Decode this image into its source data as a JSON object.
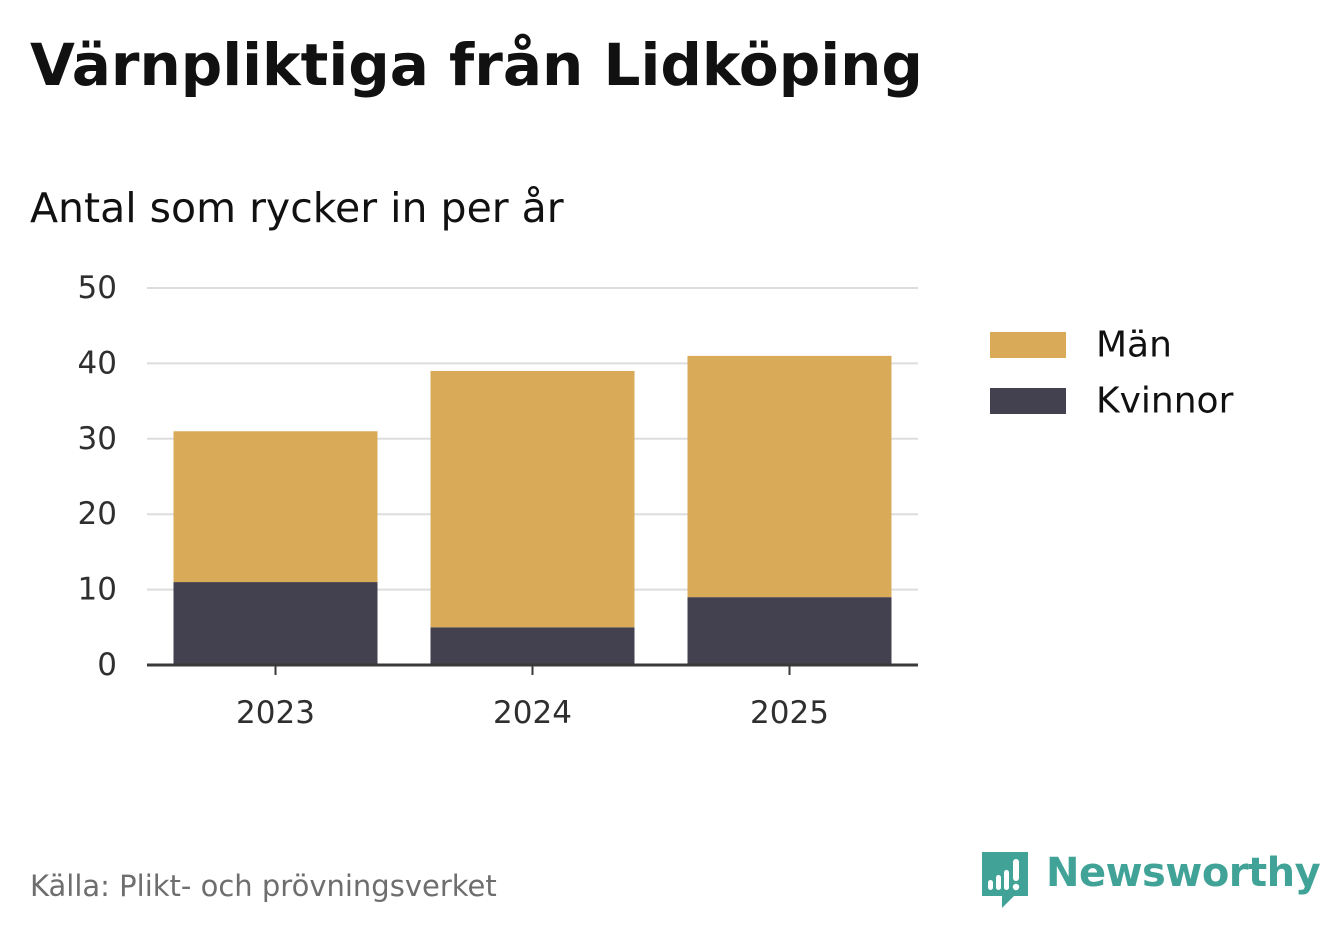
{
  "header": {
    "title": "Värnpliktiga från Lidköping",
    "subtitle": "Antal som rycker in per år"
  },
  "footer": {
    "source": "Källa: Plikt- och prövningsverket",
    "brand": "Newsworthy",
    "brand_icon": "newsworthy-logo-icon"
  },
  "colors": {
    "men": "#d9ab59",
    "women": "#43404f",
    "grid": "#dddddd",
    "axis": "#3a3a3a",
    "brand": "#41a397"
  },
  "chart_data": {
    "type": "bar",
    "stacked": true,
    "title": "Värnpliktiga från Lidköping",
    "subtitle": "Antal som rycker in per år",
    "xlabel": "",
    "ylabel": "",
    "categories": [
      "2023",
      "2024",
      "2025"
    ],
    "series": [
      {
        "name": "Kvinnor",
        "color": "#43404f",
        "values": [
          11,
          5,
          9
        ]
      },
      {
        "name": "Män",
        "color": "#d9ab59",
        "values": [
          20,
          34,
          32
        ]
      }
    ],
    "ylim": [
      0,
      50
    ],
    "yticks": [
      0,
      10,
      20,
      30,
      40,
      50
    ],
    "grid": true,
    "legend": {
      "position": "right",
      "entries": [
        "Män",
        "Kvinnor"
      ]
    }
  }
}
